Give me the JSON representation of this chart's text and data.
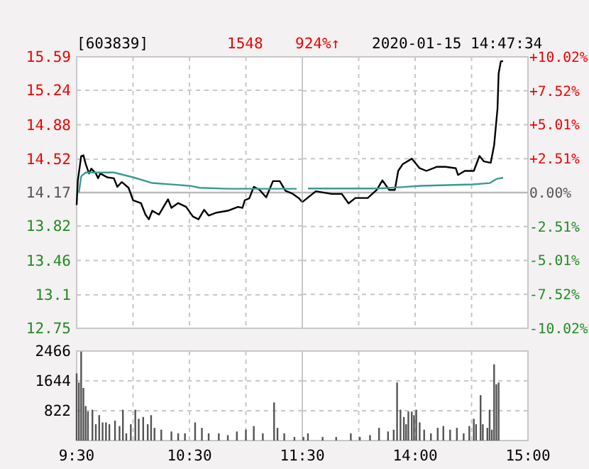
{
  "chart_data": [
    {
      "type": "line",
      "title": "[603839]",
      "annotations": [
        "1548",
        "924%↑",
        "2020-01-15 14:47:34"
      ],
      "series": [
        {
          "color": "#000000",
          "x": [
            9.5,
            9.51,
            9.54,
            9.56,
            9.58,
            9.61,
            9.63,
            9.67,
            9.69,
            9.71,
            9.77,
            9.83,
            9.86,
            9.9,
            9.96,
            10,
            10.07,
            10.11,
            10.14,
            10.17,
            10.23,
            10.31,
            10.34,
            10.4,
            10.47,
            10.53,
            10.58,
            10.63,
            10.67,
            10.74,
            10.84,
            10.93,
            10.97,
            10.99,
            11.03,
            11.07,
            11.12,
            11.18,
            11.24,
            11.3,
            11.35,
            11.41,
            11.47,
            11.5
          ],
          "values": [
            14.04,
            14.29,
            14.55,
            14.56,
            14.47,
            14.37,
            14.42,
            14.37,
            14.32,
            14.37,
            14.33,
            14.32,
            14.23,
            14.28,
            14.22,
            14.09,
            14.06,
            13.94,
            13.89,
            13.98,
            13.94,
            14.1,
            14.01,
            14.06,
            14.02,
            13.92,
            13.89,
            13.99,
            13.93,
            13.96,
            13.98,
            14.02,
            14.01,
            14.09,
            14.11,
            14.23,
            14.2,
            14.12,
            14.29,
            14.29,
            14.19,
            14.16,
            14.11,
            14.07
          ]
        },
        {
          "color": "#3a9a94",
          "x": [
            9.52,
            9.54,
            9.58,
            9.83,
            10,
            10.17,
            10.51,
            10.59,
            10.84,
            11.45
          ],
          "values": [
            14.17,
            14.34,
            14.38,
            14.38,
            14.33,
            14.27,
            14.24,
            14.22,
            14.21,
            14.21
          ]
        }
      ],
      "xlim": [
        9.5,
        11.5
      ],
      "ylim": [
        12.75,
        15.59
      ],
      "yticks": [
        15.59,
        15.24,
        14.88,
        14.52,
        14.17,
        13.82,
        13.46,
        13.1,
        12.75
      ],
      "ref_lines": [
        {
          "axis": "y",
          "value": 14.17,
          "color": "#bbbbbb"
        }
      ],
      "grid": true,
      "tick_labels": "y"
    },
    {
      "type": "line",
      "series": [
        {
          "color": "#000000",
          "x": [
            13,
            13.12,
            13.26,
            13.35,
            13.41,
            13.47,
            13.58,
            13.66,
            13.71,
            13.77,
            13.82,
            13.85,
            13.89,
            13.97,
            14.04,
            14.1,
            14.19,
            14.27,
            14.36,
            14.38,
            14.44,
            14.52,
            14.57,
            14.61,
            14.67,
            14.7,
            14.73,
            14.74,
            14.76,
            14.78
          ],
          "values": [
            -0.7,
            0.1,
            -0.1,
            -0.1,
            -0.8,
            -0.4,
            -0.4,
            0.2,
            0.9,
            0.2,
            0.2,
            1.6,
            2.1,
            2.5,
            1.8,
            1.6,
            1.9,
            1.9,
            1.8,
            1.3,
            1.6,
            1.6,
            2.7,
            2.3,
            2.2,
            3.5,
            6.2,
            8.8,
            9.7,
            9.7
          ]
        },
        {
          "color": "#3a9a94",
          "x": [
            13.05,
            13.67,
            13.88,
            14.05,
            14.51,
            14.66,
            14.72,
            14.78
          ],
          "values": [
            0.3,
            0.3,
            0.4,
            0.5,
            0.6,
            0.7,
            1,
            1.1
          ]
        }
      ],
      "xlim": [
        13,
        15
      ],
      "ylim": [
        -10.02,
        10.02
      ],
      "yticks": [
        {
          "value": 10.02,
          "label": "+10.02%"
        },
        {
          "value": 7.52,
          "label": "+7.52%"
        },
        {
          "value": 5.01,
          "label": "+5.01%"
        },
        {
          "value": 2.51,
          "label": "+2.51%"
        },
        {
          "value": 0,
          "label": "0.00%"
        },
        {
          "value": -2.51,
          "label": "-2.51%"
        },
        {
          "value": -5.01,
          "label": "-5.01%"
        },
        {
          "value": -7.52,
          "label": "-7.52%"
        },
        {
          "value": -10.02,
          "label": "-10.02%"
        }
      ],
      "ref_lines": [
        {
          "axis": "y",
          "value": 0,
          "color": "#bbbbbb"
        }
      ],
      "grid": true,
      "tick_labels": "y"
    },
    {
      "type": "bar",
      "color": "#555555",
      "x": [
        9.5,
        9.52,
        9.54,
        9.56,
        9.58,
        9.6,
        9.64,
        9.67,
        9.7,
        9.73,
        9.76,
        9.79,
        9.84,
        9.88,
        9.91,
        9.94,
        9.98,
        10.02,
        10.05,
        10.09,
        10.13,
        10.16,
        10.19,
        10.25,
        10.34,
        10.4,
        10.46,
        10.55,
        10.61,
        10.67,
        10.76,
        10.84,
        10.92,
        11,
        11.07,
        11.15,
        11.25,
        11.28,
        11.34,
        11.43
      ],
      "values": [
        1850,
        1600,
        2450,
        1450,
        950,
        800,
        850,
        450,
        700,
        500,
        500,
        450,
        550,
        400,
        850,
        200,
        450,
        850,
        600,
        650,
        450,
        700,
        350,
        300,
        250,
        200,
        200,
        500,
        350,
        200,
        200,
        150,
        250,
        300,
        400,
        200,
        1050,
        350,
        200,
        100
      ],
      "xlim": [
        9.5,
        11.5
      ],
      "xticks": [
        {
          "value": 9.5,
          "label": "9:30"
        },
        {
          "value": 10,
          "label": null
        },
        {
          "value": 10.5,
          "label": "10:30"
        },
        {
          "value": 11,
          "label": null
        },
        {
          "value": 11.5,
          "label": "11:30"
        }
      ],
      "ylim": [
        0,
        2466
      ],
      "yticks": [
        822,
        1644,
        2466
      ],
      "grid": true
    },
    {
      "type": "bar",
      "color": "#555555",
      "x": [
        13.01,
        13.05,
        13.18,
        13.3,
        13.43,
        13.51,
        13.6,
        13.68,
        13.76,
        13.81,
        13.84,
        13.87,
        13.9,
        13.92,
        13.94,
        13.97,
        13.99,
        14.01,
        14.04,
        14.08,
        14.14,
        14.2,
        14.25,
        14.31,
        14.37,
        14.43,
        14.48,
        14.52,
        14.54,
        14.58,
        14.6,
        14.64,
        14.66,
        14.68,
        14.7,
        14.72,
        14.74
      ],
      "values": [
        100,
        200,
        100,
        100,
        200,
        100,
        150,
        350,
        250,
        300,
        1600,
        850,
        650,
        450,
        800,
        800,
        700,
        850,
        500,
        300,
        200,
        350,
        400,
        300,
        350,
        200,
        400,
        600,
        450,
        1250,
        450,
        350,
        850,
        300,
        2100,
        1550,
        1600
      ],
      "xlim": [
        13,
        15
      ],
      "xticks": [
        {
          "value": 13,
          "label": null
        },
        {
          "value": 13.5,
          "label": null
        },
        {
          "value": 14,
          "label": "14:00"
        },
        {
          "value": 14.5,
          "label": null
        },
        {
          "value": 15,
          "label": "15:00"
        }
      ],
      "ylim": [
        0,
        2466
      ],
      "yticks": [
        822,
        1644,
        2466
      ],
      "grid": true,
      "tick_labels": "x"
    }
  ]
}
